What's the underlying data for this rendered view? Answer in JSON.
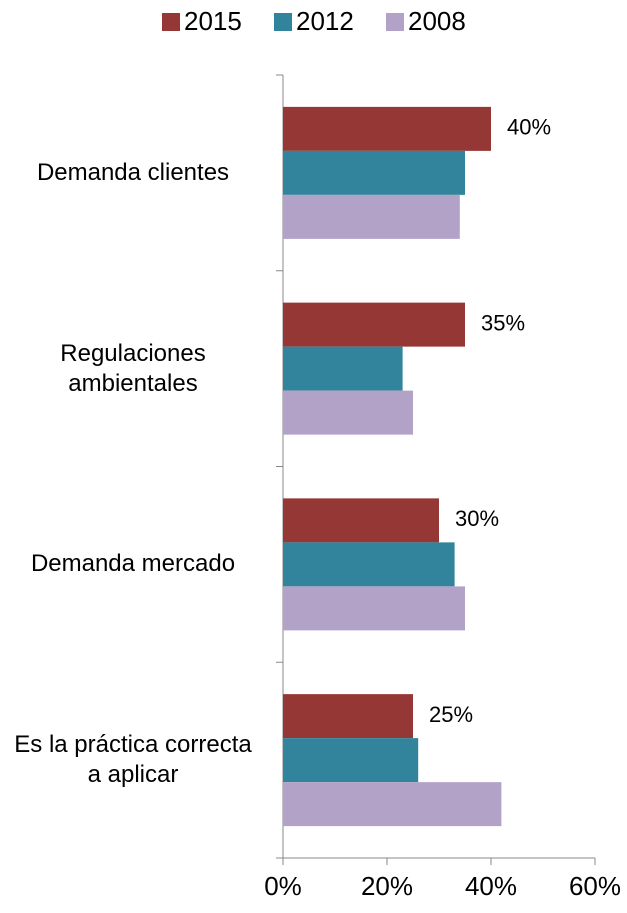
{
  "chart_data": {
    "type": "bar",
    "orientation": "horizontal",
    "categories": [
      "Demanda clientes",
      "Regulaciones ambientales",
      "Demanda mercado",
      "Es la práctica correcta a aplicar"
    ],
    "series": [
      {
        "name": "2015",
        "color": "#953735",
        "values": [
          40,
          35,
          30,
          25
        ],
        "value_labels": [
          "40%",
          "35%",
          "30%",
          "25%"
        ]
      },
      {
        "name": "2012",
        "color": "#31849b",
        "values": [
          35,
          23,
          33,
          26
        ]
      },
      {
        "name": "2008",
        "color": "#b3a2c7",
        "values": [
          34,
          25,
          35,
          42
        ]
      }
    ],
    "xlim": [
      0,
      60
    ],
    "xticks": [
      {
        "value": 0,
        "label": "0%"
      },
      {
        "value": 20,
        "label": "20%"
      },
      {
        "value": 40,
        "label": "40%"
      },
      {
        "value": 60,
        "label": "60%"
      }
    ],
    "legend": "top",
    "grid": false
  }
}
